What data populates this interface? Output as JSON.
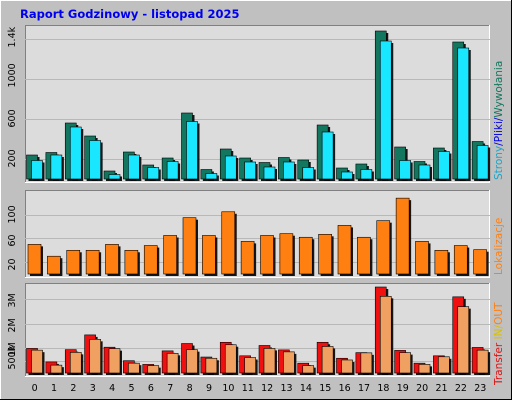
{
  "title": "Raport Godzinowy -  listopad 2025",
  "colors": {
    "background": "#c0c0c0",
    "panel": "#dcdcdc",
    "pages_bar": "#13775f",
    "files_bar": "#19e6ff",
    "visits_bar": "#ff7f10",
    "transfer_in": "#f01010",
    "transfer_out": "#f0a060",
    "label_pages": "#19a5c8",
    "label_files": "#0000e0",
    "label_visits_legend": "#13775f",
    "label_visits": "#ff7f10",
    "label_in": "#d8c000",
    "label_out": "#ff7f10",
    "label_transfer": "#e01010"
  },
  "chart_data": [
    {
      "type": "bar",
      "panel": "top",
      "ylabels": [
        "200",
        "600",
        "1000",
        "1.4k"
      ],
      "ylim": [
        0,
        1500
      ],
      "legend": [
        "Strony",
        "/",
        "Pliki",
        "/",
        "Wywołania"
      ],
      "categories": [
        "0",
        "1",
        "2",
        "3",
        "4",
        "5",
        "6",
        "7",
        "8",
        "9",
        "10",
        "11",
        "12",
        "13",
        "14",
        "15",
        "16",
        "17",
        "18",
        "19",
        "20",
        "21",
        "22",
        "23"
      ],
      "series": [
        {
          "name": "Wywołania",
          "values": [
            240,
            265,
            560,
            430,
            80,
            270,
            140,
            210,
            660,
            95,
            300,
            210,
            165,
            215,
            190,
            540,
            110,
            150,
            1480,
            320,
            175,
            310,
            1370,
            375
          ]
        },
        {
          "name": "Pliki",
          "values": [
            185,
            240,
            520,
            385,
            45,
            240,
            115,
            175,
            575,
            55,
            230,
            170,
            120,
            170,
            115,
            470,
            70,
            95,
            1380,
            185,
            140,
            275,
            1310,
            335
          ]
        }
      ]
    },
    {
      "type": "bar",
      "panel": "middle",
      "ylabels": [
        "20",
        "60",
        "100"
      ],
      "ylim": [
        0,
        135
      ],
      "legend": [
        "Lokalizacje"
      ],
      "categories": [
        "0",
        "1",
        "2",
        "3",
        "4",
        "5",
        "6",
        "7",
        "8",
        "9",
        "10",
        "11",
        "12",
        "13",
        "14",
        "15",
        "16",
        "17",
        "18",
        "19",
        "20",
        "21",
        "22",
        "23"
      ],
      "series": [
        {
          "name": "Lokalizacje",
          "values": [
            50,
            30,
            40,
            40,
            50,
            40,
            48,
            65,
            95,
            65,
            105,
            55,
            65,
            68,
            62,
            67,
            82,
            62,
            90,
            128,
            55,
            40,
            48,
            41
          ]
        }
      ]
    },
    {
      "type": "bar",
      "panel": "bottom",
      "ylabels": [
        "500k",
        "1M",
        "2M",
        "3M"
      ],
      "ylim": [
        0,
        3500000
      ],
      "legend": [
        "Transfer",
        "IN",
        "/",
        "OUT"
      ],
      "categories": [
        "0",
        "1",
        "2",
        "3",
        "4",
        "5",
        "6",
        "7",
        "8",
        "9",
        "10",
        "11",
        "12",
        "13",
        "14",
        "15",
        "16",
        "17",
        "18",
        "19",
        "20",
        "21",
        "22",
        "23"
      ],
      "series": [
        {
          "name": "IN",
          "values": [
            1000000,
            450000,
            950000,
            1550000,
            1050000,
            500000,
            350000,
            900000,
            1200000,
            650000,
            1250000,
            700000,
            1120000,
            940000,
            400000,
            1250000,
            600000,
            830000,
            3500000,
            920000,
            400000,
            700000,
            3100000,
            1040000
          ]
        },
        {
          "name": "OUT",
          "values": [
            930000,
            320000,
            840000,
            1370000,
            990000,
            400000,
            300000,
            800000,
            950000,
            600000,
            1150000,
            630000,
            1000000,
            860000,
            300000,
            1080000,
            530000,
            820000,
            3120000,
            830000,
            350000,
            660000,
            2700000,
            930000
          ]
        }
      ]
    }
  ]
}
